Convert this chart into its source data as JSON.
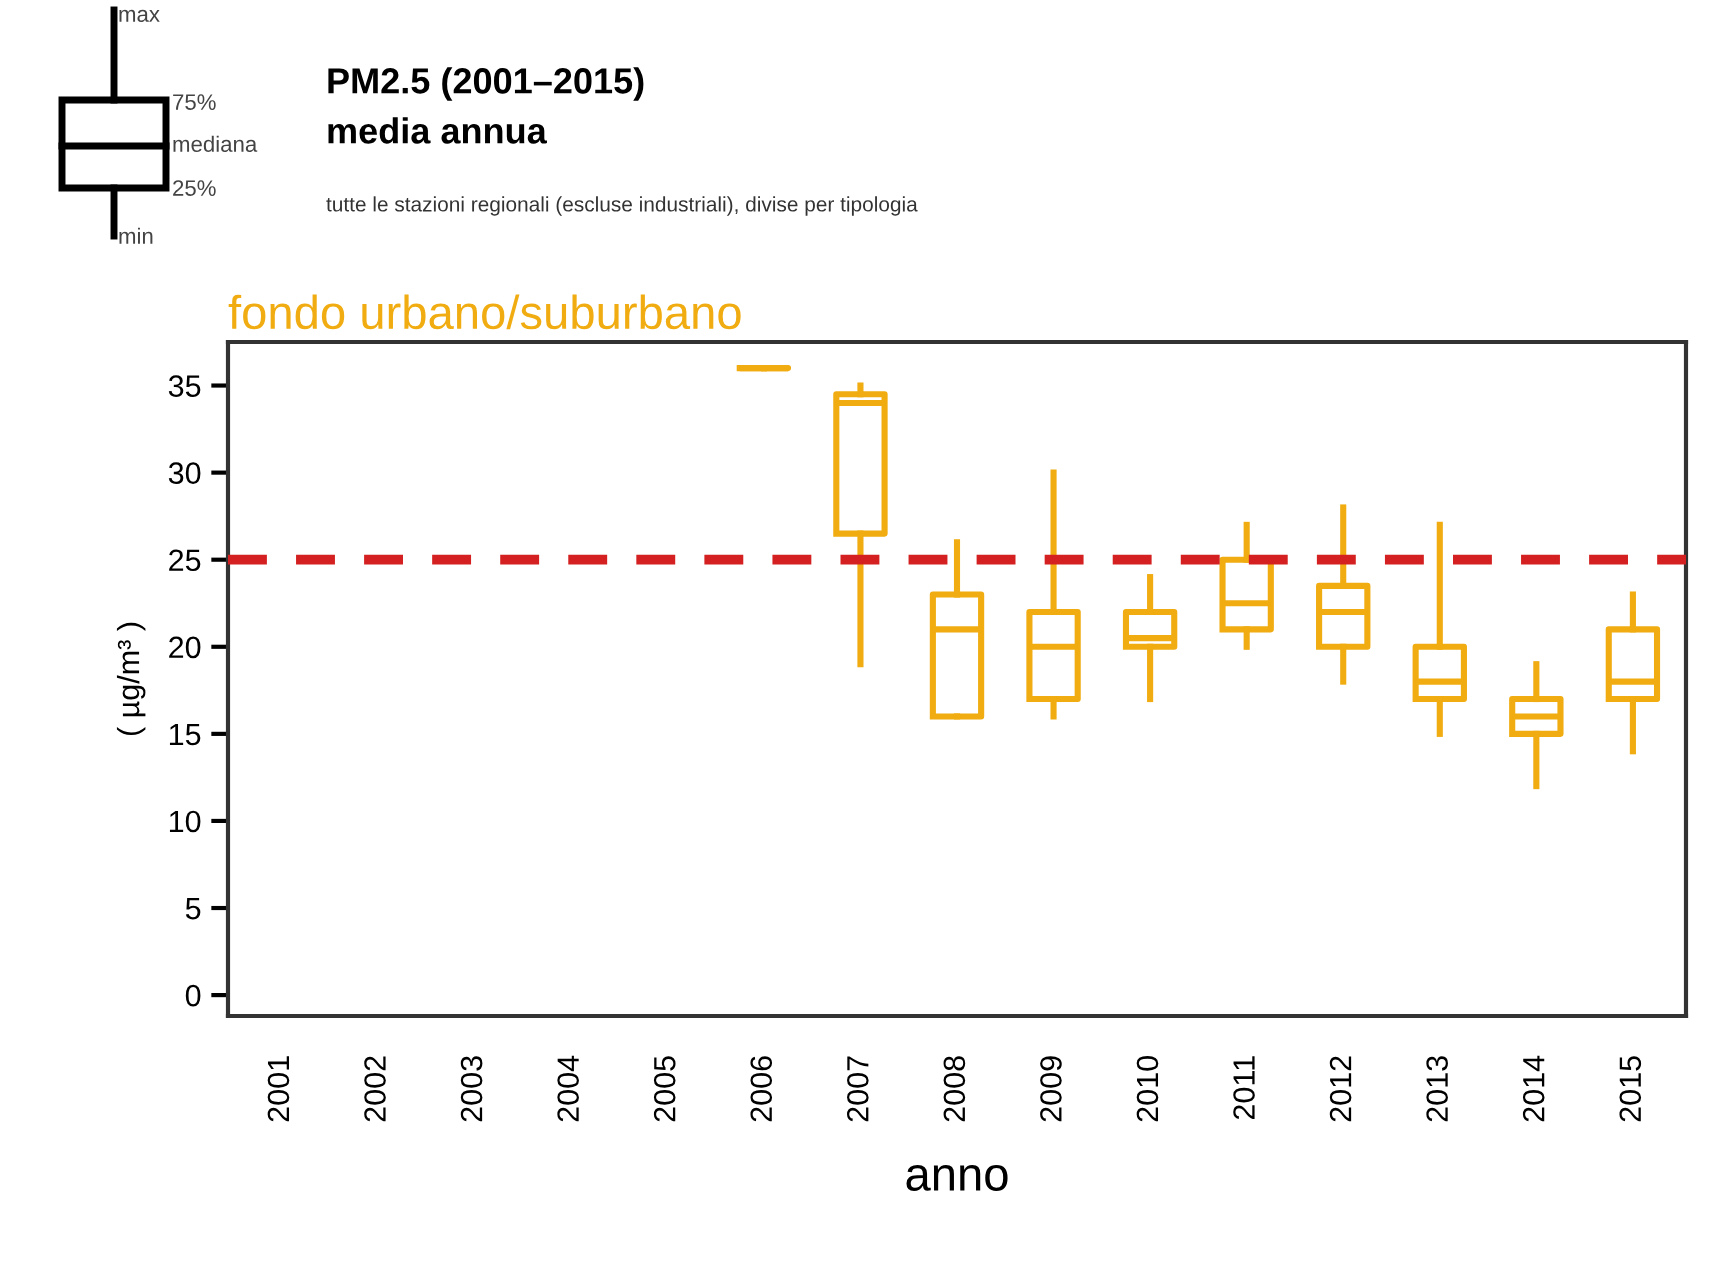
{
  "chart_data": {
    "type": "box",
    "title": "PM2.5 (2001–2015)",
    "subtitle": "media annua",
    "annotations": [
      "tutte le stazioni regionali (escluse industriali), divise per tipologia",
      "max",
      "75%",
      "mediana",
      "25%",
      "min"
    ],
    "xlabel": "anno",
    "ylabel": "( µg/m³ )",
    "categories": [
      "2001",
      "2002",
      "2003",
      "2004",
      "2005",
      "2006",
      "2007",
      "2008",
      "2009",
      "2010",
      "2011",
      "2012",
      "2013",
      "2014",
      "2015"
    ],
    "series": [
      {
        "name": "fondo urbano/suburbano",
        "color": "#f0ac10",
        "boxes": [
          null,
          null,
          null,
          null,
          null,
          {
            "low": 36,
            "q1": 36,
            "median": 36,
            "q3": 36,
            "high": 36
          },
          {
            "low": 19,
            "q1": 26.5,
            "median": 34,
            "q3": 34.5,
            "high": 35
          },
          {
            "low": 16,
            "q1": 16,
            "median": 21,
            "q3": 23,
            "high": 26
          },
          {
            "low": 16,
            "q1": 17,
            "median": 20,
            "q3": 22,
            "high": 30
          },
          {
            "low": 17,
            "q1": 20,
            "median": 20.5,
            "q3": 22,
            "high": 24
          },
          {
            "low": 20,
            "q1": 21,
            "median": 22.5,
            "q3": 25,
            "high": 27
          },
          {
            "low": 18,
            "q1": 20,
            "median": 22,
            "q3": 23.5,
            "high": 28
          },
          {
            "low": 15,
            "q1": 17,
            "median": 18,
            "q3": 20,
            "high": 27
          },
          {
            "low": 12,
            "q1": 15,
            "median": 16,
            "q3": 17,
            "high": 19
          },
          {
            "low": 14,
            "q1": 17,
            "median": 18,
            "q3": 21,
            "high": 23
          }
        ]
      }
    ],
    "ref_lines": [
      {
        "axis": "y",
        "value": 25,
        "color": "#d42020",
        "line_style": "dashed"
      }
    ],
    "ylim": [
      -1.2,
      37.5
    ],
    "yticks": [
      0,
      5,
      10,
      15,
      20,
      25,
      30,
      35
    ],
    "grid": false,
    "legend": false
  }
}
